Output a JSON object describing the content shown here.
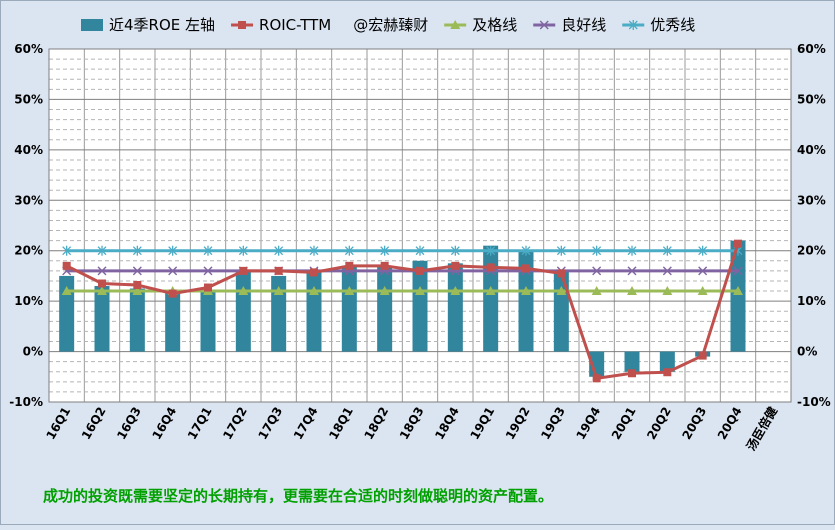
{
  "chart_data": {
    "type": "bar",
    "categories": [
      "16Q1",
      "16Q2",
      "16Q3",
      "16Q4",
      "17Q1",
      "17Q2",
      "17Q3",
      "17Q4",
      "18Q1",
      "18Q2",
      "18Q3",
      "18Q4",
      "19Q1",
      "19Q2",
      "19Q3",
      "19Q4",
      "20Q1",
      "20Q2",
      "20Q3",
      "20Q4"
    ],
    "extra_tick": "汤臣倍健",
    "ylim": [
      -10,
      60
    ],
    "yticks": [
      -10,
      0,
      10,
      20,
      30,
      40,
      50,
      60
    ],
    "ytick_suffix": "%",
    "grid": true,
    "legend_position": "top",
    "legend_note": "@宏赫臻财",
    "series": [
      {
        "name": "近4季ROE 左轴",
        "kind": "bar",
        "color": "#31859c",
        "values": [
          15,
          13,
          12.5,
          12,
          12,
          16,
          15,
          16,
          17,
          17,
          18,
          17.5,
          21,
          20,
          16,
          -5,
          -4,
          -4,
          -1,
          22
        ]
      },
      {
        "name": "ROIC-TTM",
        "kind": "line",
        "color": "#c0504d",
        "marker": "square",
        "values": [
          17,
          13.5,
          13.2,
          11.5,
          12.7,
          16,
          16,
          15.7,
          17,
          17,
          16,
          17,
          16.7,
          16.5,
          15.5,
          -5.3,
          -4.3,
          -4.1,
          -0.8,
          21.4
        ]
      },
      {
        "name": "及格线",
        "kind": "line",
        "color": "#9bbb59",
        "marker": "triangle",
        "values": [
          12,
          12,
          12,
          12,
          12,
          12,
          12,
          12,
          12,
          12,
          12,
          12,
          12,
          12,
          12,
          12,
          12,
          12,
          12,
          12
        ]
      },
      {
        "name": "良好线",
        "kind": "line",
        "color": "#8064a2",
        "marker": "x",
        "values": [
          16,
          16,
          16,
          16,
          16,
          16,
          16,
          16,
          16,
          16,
          16,
          16,
          16,
          16,
          16,
          16,
          16,
          16,
          16,
          16
        ]
      },
      {
        "name": "优秀线",
        "kind": "line",
        "color": "#4bacc6",
        "marker": "star",
        "values": [
          20,
          20,
          20,
          20,
          20,
          20,
          20,
          20,
          20,
          20,
          20,
          20,
          20,
          20,
          20,
          20,
          20,
          20,
          20,
          20
        ]
      }
    ]
  },
  "footnote": "成功的投资既需要坚定的长期持有，更需要在合适的时刻做聪明的资产配置。"
}
